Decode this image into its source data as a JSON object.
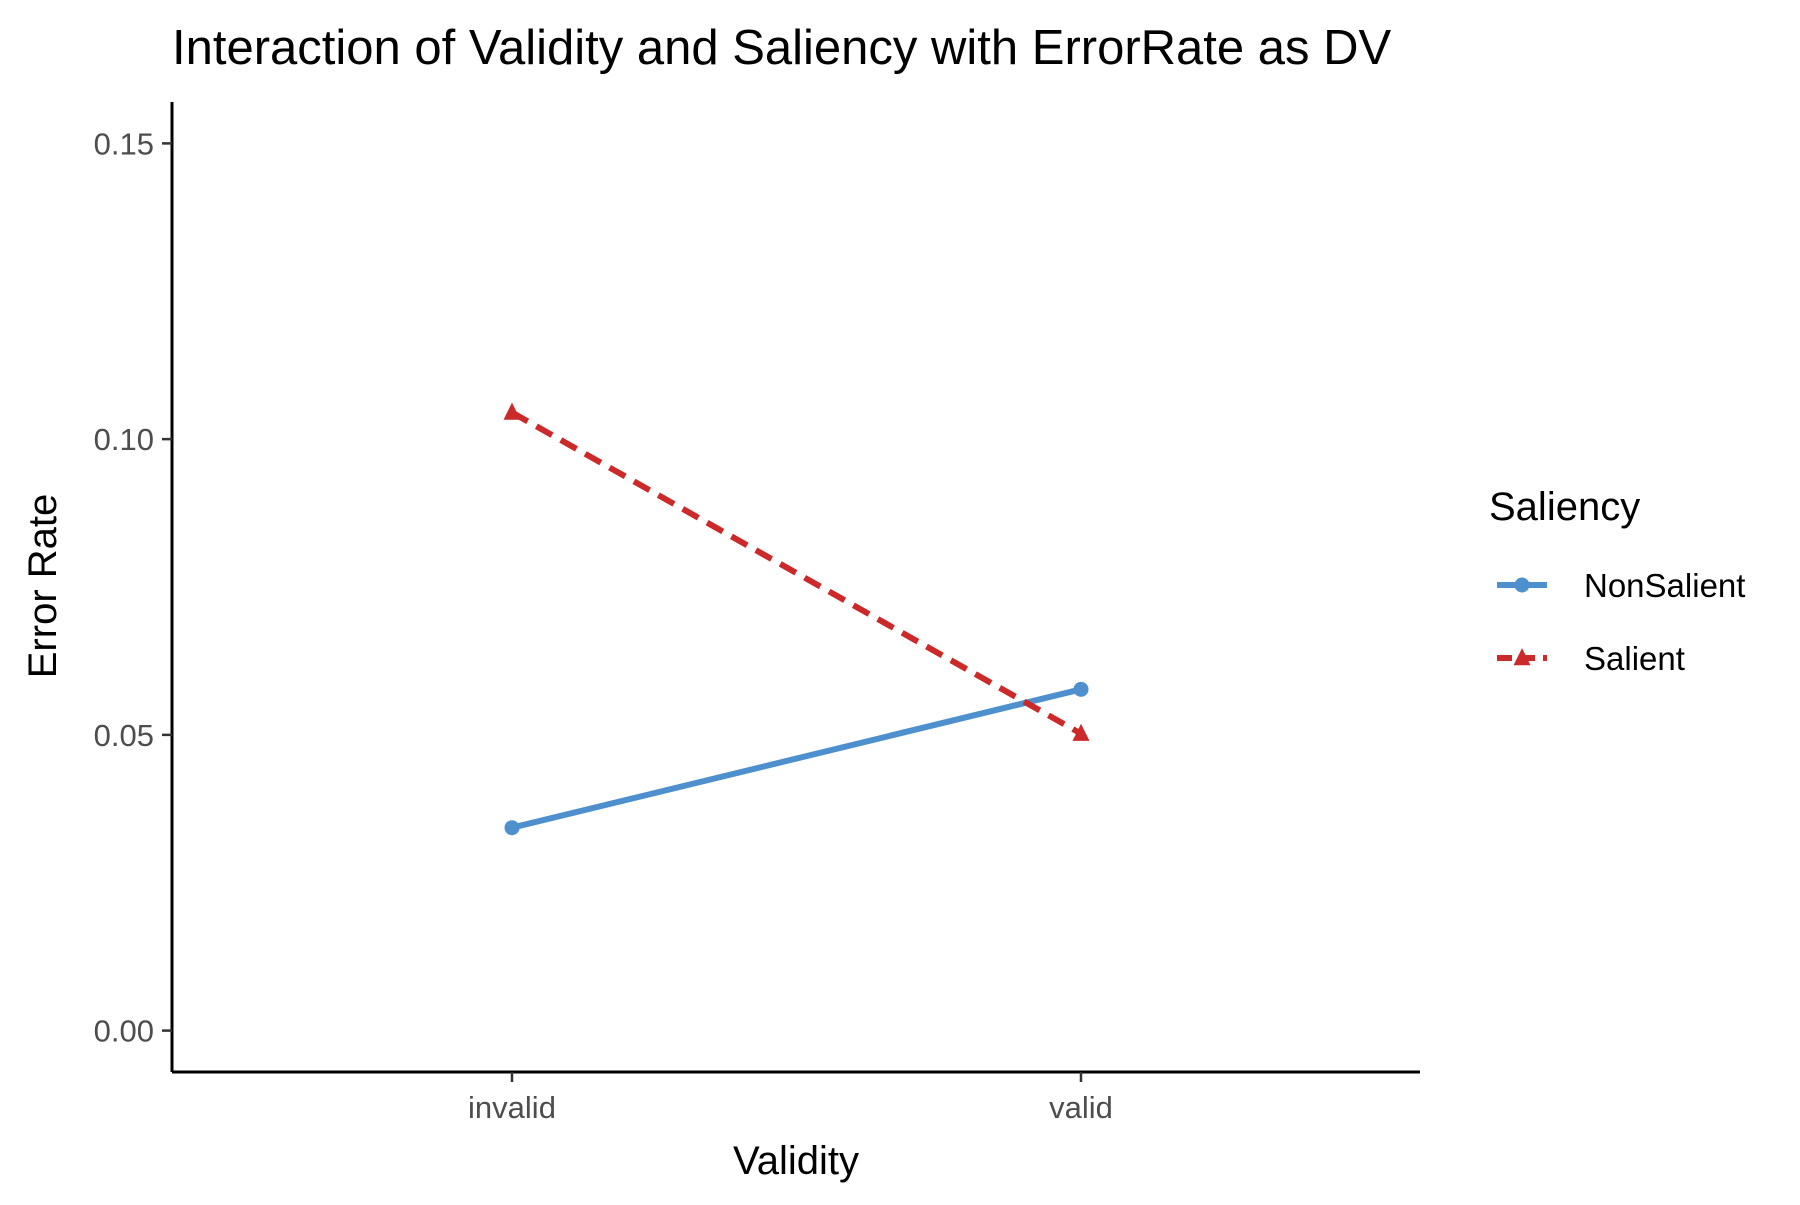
{
  "chart_data": {
    "type": "line",
    "title": "Interaction of Validity and Saliency with ErrorRate as DV",
    "xlabel": "Validity",
    "ylabel": "Error Rate",
    "categories": [
      "invalid",
      "valid"
    ],
    "ylim": [
      -0.007,
      0.157
    ],
    "yticks": [
      0.0,
      0.05,
      0.1,
      0.15
    ],
    "ytick_labels": [
      "0.00",
      "0.05",
      "0.10",
      "0.15"
    ],
    "grid": false,
    "legend": {
      "title": "Saliency",
      "position": "right"
    },
    "series": [
      {
        "name": "NonSalient",
        "values": [
          0.0343,
          0.0577
        ],
        "color": "#4d90cd",
        "line_style": "solid",
        "marker": "circle"
      },
      {
        "name": "Salient",
        "values": [
          0.1045,
          0.0502
        ],
        "color": "#cc2a2a",
        "line_style": "dashed",
        "marker": "triangle"
      }
    ]
  }
}
